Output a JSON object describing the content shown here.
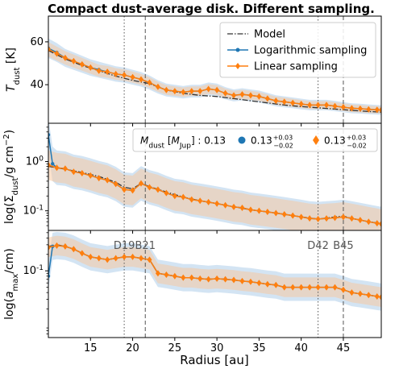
{
  "figure": {
    "title": "Compact dust-average disk. Different sampling.",
    "xlabel": "Radius [au]"
  },
  "colors": {
    "model": "#333333",
    "log": "#1f77b4",
    "log_band": "#aecde9",
    "lin": "#ff7f0e",
    "lin_band": "#f6c9a3",
    "vline": "#555555"
  },
  "chart_data": [
    {
      "type": "line",
      "panel": "T_dust",
      "ylabel": "T_dust [K]",
      "yscale": "linear",
      "ylim": [
        22,
        72
      ],
      "xlim": [
        10,
        49.5
      ],
      "xticks": [
        15,
        20,
        25,
        30,
        35,
        40,
        45
      ],
      "xtick_labels": [
        "15",
        "20",
        "25",
        "30",
        "35",
        "40",
        "45"
      ],
      "yticks": [
        40,
        60
      ],
      "ytick_labels": [
        "40",
        "60"
      ],
      "legend": {
        "position": "top-right",
        "entries": [
          "Model",
          "Logarithmic sampling",
          "Linear sampling"
        ]
      },
      "series": [
        {
          "name": "Model",
          "style": "dashdot",
          "x": [
            10,
            12,
            14,
            16,
            18,
            20,
            22,
            24,
            26,
            28,
            30,
            32,
            34,
            36,
            38,
            40,
            42,
            44,
            46,
            48,
            49.5
          ],
          "values": [
            56,
            52,
            49,
            46.5,
            44,
            42,
            40.5,
            37.5,
            36,
            35,
            34.5,
            33.5,
            32.5,
            31.5,
            30.5,
            29.8,
            29.2,
            28.6,
            28,
            27.5,
            27.2
          ]
        },
        {
          "name": "Logarithmic sampling",
          "style": "line-dots",
          "x": [
            10,
            11,
            12,
            13,
            14,
            15,
            16,
            17,
            18,
            19,
            20,
            21,
            22,
            23,
            24,
            25,
            26,
            27,
            28,
            29,
            30,
            31,
            32,
            33,
            34,
            35,
            36,
            37,
            38,
            39,
            40,
            41,
            42,
            43,
            44,
            45,
            46,
            47,
            48,
            49,
            49.5
          ],
          "values": [
            57,
            55,
            52.5,
            51,
            49.5,
            48,
            47,
            46,
            45,
            44.5,
            43.5,
            42.5,
            41,
            39,
            37.5,
            37,
            36.5,
            37,
            37,
            38,
            37.5,
            36,
            35,
            35.5,
            35,
            34.5,
            33.5,
            32.5,
            32,
            31.5,
            31,
            30.5,
            30.5,
            30.5,
            30,
            29.5,
            29,
            28.8,
            28.5,
            28.3,
            28.2
          ]
        },
        {
          "name": "Linear sampling",
          "style": "line-diamonds",
          "x": [
            10,
            11,
            12,
            13,
            14,
            15,
            16,
            17,
            18,
            19,
            20,
            21,
            22,
            23,
            24,
            25,
            26,
            27,
            28,
            29,
            30,
            31,
            32,
            33,
            34,
            35,
            36,
            37,
            38,
            39,
            40,
            41,
            42,
            43,
            44,
            45,
            46,
            47,
            48,
            49,
            49.5
          ],
          "values": [
            56.5,
            54.5,
            52.5,
            51,
            49.5,
            48,
            46.5,
            46,
            45,
            44.5,
            43.5,
            42.5,
            41,
            39,
            37.5,
            37,
            36.5,
            37,
            37,
            38,
            37.5,
            36,
            35,
            35.5,
            35,
            34.5,
            33.5,
            32.5,
            32,
            31.5,
            31,
            30.5,
            30.5,
            30.5,
            30,
            29.5,
            29,
            28.8,
            28.5,
            28.3,
            28.2
          ]
        }
      ]
    },
    {
      "type": "line",
      "panel": "Sigma_dust",
      "ylabel": "log(Σ_dust/g cm^-2)",
      "yscale": "log",
      "ylim": [
        0.04,
        6
      ],
      "xlim": [
        10,
        49.5
      ],
      "yticks": [
        0.1,
        1
      ],
      "ytick_labels": [
        "10^-1",
        "10^0"
      ],
      "legend_text": {
        "model_mass": "M_dust [M_Jup] : 0.13",
        "log_mass": "0.13 (+0.03 / -0.02)",
        "lin_mass": "0.13 (+0.03 / -0.02)"
      },
      "series": [
        {
          "name": "Model",
          "style": "dashdot",
          "x": [
            10,
            12,
            14,
            16,
            18,
            19,
            20,
            21,
            22,
            24,
            26,
            28,
            30,
            32,
            34,
            36,
            38,
            40,
            42,
            44,
            45,
            46,
            48,
            49.5
          ],
          "values": [
            0.8,
            0.7,
            0.6,
            0.5,
            0.38,
            0.3,
            0.28,
            0.36,
            0.31,
            0.24,
            0.19,
            0.16,
            0.14,
            0.12,
            0.105,
            0.095,
            0.085,
            0.075,
            0.068,
            0.075,
            0.078,
            0.07,
            0.06,
            0.055
          ]
        },
        {
          "name": "Logarithmic sampling",
          "style": "line-dots",
          "x": [
            10,
            10.5,
            11,
            12,
            13,
            14,
            15,
            16,
            17,
            18,
            19,
            20,
            21,
            22,
            23,
            24,
            25,
            26,
            27,
            28,
            29,
            30,
            31,
            32,
            33,
            34,
            35,
            36,
            37,
            38,
            39,
            40,
            41,
            42,
            43,
            44,
            45,
            46,
            47,
            48,
            49,
            49.5
          ],
          "values": [
            3.5,
            0.9,
            0.75,
            0.72,
            0.62,
            0.58,
            0.52,
            0.46,
            0.42,
            0.35,
            0.27,
            0.26,
            0.36,
            0.3,
            0.27,
            0.23,
            0.2,
            0.19,
            0.17,
            0.16,
            0.15,
            0.14,
            0.13,
            0.12,
            0.115,
            0.105,
            0.1,
            0.095,
            0.09,
            0.085,
            0.08,
            0.075,
            0.07,
            0.068,
            0.07,
            0.072,
            0.075,
            0.07,
            0.065,
            0.06,
            0.056,
            0.054
          ]
        },
        {
          "name": "Linear sampling",
          "style": "line-diamonds",
          "x": [
            10,
            11,
            12,
            13,
            14,
            15,
            16,
            17,
            18,
            19,
            20,
            21,
            22,
            23,
            24,
            25,
            26,
            27,
            28,
            29,
            30,
            31,
            32,
            33,
            34,
            35,
            36,
            37,
            38,
            39,
            40,
            41,
            42,
            43,
            44,
            45,
            46,
            47,
            48,
            49,
            49.5
          ],
          "values": [
            0.85,
            0.75,
            0.72,
            0.62,
            0.58,
            0.52,
            0.46,
            0.42,
            0.35,
            0.27,
            0.26,
            0.36,
            0.3,
            0.27,
            0.23,
            0.2,
            0.19,
            0.17,
            0.16,
            0.15,
            0.14,
            0.13,
            0.12,
            0.115,
            0.105,
            0.1,
            0.095,
            0.09,
            0.085,
            0.08,
            0.075,
            0.07,
            0.068,
            0.07,
            0.072,
            0.075,
            0.07,
            0.065,
            0.06,
            0.056,
            0.054
          ]
        }
      ]
    },
    {
      "type": "line",
      "panel": "a_max",
      "ylabel": "log(a_max/cm)",
      "yscale": "log",
      "ylim": [
        0.006,
        0.55
      ],
      "xlim": [
        10,
        49.5
      ],
      "yticks": [
        0.1
      ],
      "ytick_labels": [
        "10^-1"
      ],
      "annotations": [
        {
          "x": 19,
          "text": "D19"
        },
        {
          "x": 21.5,
          "text": "B21"
        },
        {
          "x": 42,
          "text": "D42"
        },
        {
          "x": 45,
          "text": "B45"
        }
      ],
      "series": [
        {
          "name": "Model",
          "style": "dashdot",
          "x": [
            10,
            11,
            12,
            13,
            14,
            15,
            16,
            17,
            18,
            19,
            20,
            21,
            22,
            23,
            24,
            25,
            26,
            27,
            28,
            29,
            30,
            31,
            32,
            33,
            34,
            35,
            36,
            37,
            38,
            39,
            40,
            41,
            42,
            43,
            44,
            45,
            46,
            47,
            48,
            49,
            49.5
          ],
          "values": [
            0.28,
            0.3,
            0.28,
            0.25,
            0.21,
            0.18,
            0.17,
            0.16,
            0.17,
            0.18,
            0.18,
            0.17,
            0.16,
            0.09,
            0.085,
            0.08,
            0.075,
            0.075,
            0.072,
            0.07,
            0.072,
            0.07,
            0.068,
            0.065,
            0.063,
            0.06,
            0.057,
            0.055,
            0.05,
            0.05,
            0.05,
            0.05,
            0.05,
            0.05,
            0.05,
            0.045,
            0.04,
            0.038,
            0.036,
            0.034,
            0.033
          ]
        },
        {
          "name": "Logarithmic sampling",
          "style": "line-dots",
          "x": [
            10,
            10.5,
            11,
            12,
            13,
            14,
            15,
            16,
            17,
            18,
            19,
            20,
            21,
            22,
            23,
            24,
            25,
            26,
            27,
            28,
            29,
            30,
            31,
            32,
            33,
            34,
            35,
            36,
            37,
            38,
            39,
            40,
            41,
            42,
            43,
            44,
            45,
            46,
            47,
            48,
            49,
            49.5
          ],
          "values": [
            0.08,
            0.28,
            0.29,
            0.28,
            0.25,
            0.21,
            0.18,
            0.17,
            0.16,
            0.17,
            0.18,
            0.18,
            0.17,
            0.16,
            0.09,
            0.085,
            0.08,
            0.075,
            0.075,
            0.072,
            0.07,
            0.072,
            0.07,
            0.068,
            0.065,
            0.063,
            0.06,
            0.057,
            0.055,
            0.05,
            0.05,
            0.05,
            0.05,
            0.05,
            0.05,
            0.05,
            0.045,
            0.04,
            0.038,
            0.036,
            0.034,
            0.033
          ]
        },
        {
          "name": "Linear sampling",
          "style": "line-diamonds",
          "x": [
            10,
            11,
            12,
            13,
            14,
            15,
            16,
            17,
            18,
            19,
            20,
            21,
            22,
            23,
            24,
            25,
            26,
            27,
            28,
            29,
            30,
            31,
            32,
            33,
            34,
            35,
            36,
            37,
            38,
            39,
            40,
            41,
            42,
            43,
            44,
            45,
            46,
            47,
            48,
            49,
            49.5
          ],
          "values": [
            0.27,
            0.29,
            0.28,
            0.25,
            0.21,
            0.18,
            0.17,
            0.16,
            0.17,
            0.18,
            0.18,
            0.17,
            0.16,
            0.09,
            0.085,
            0.08,
            0.075,
            0.075,
            0.072,
            0.07,
            0.072,
            0.07,
            0.068,
            0.065,
            0.063,
            0.06,
            0.057,
            0.055,
            0.05,
            0.05,
            0.05,
            0.05,
            0.05,
            0.05,
            0.05,
            0.045,
            0.04,
            0.038,
            0.036,
            0.034,
            0.033
          ]
        }
      ]
    }
  ]
}
